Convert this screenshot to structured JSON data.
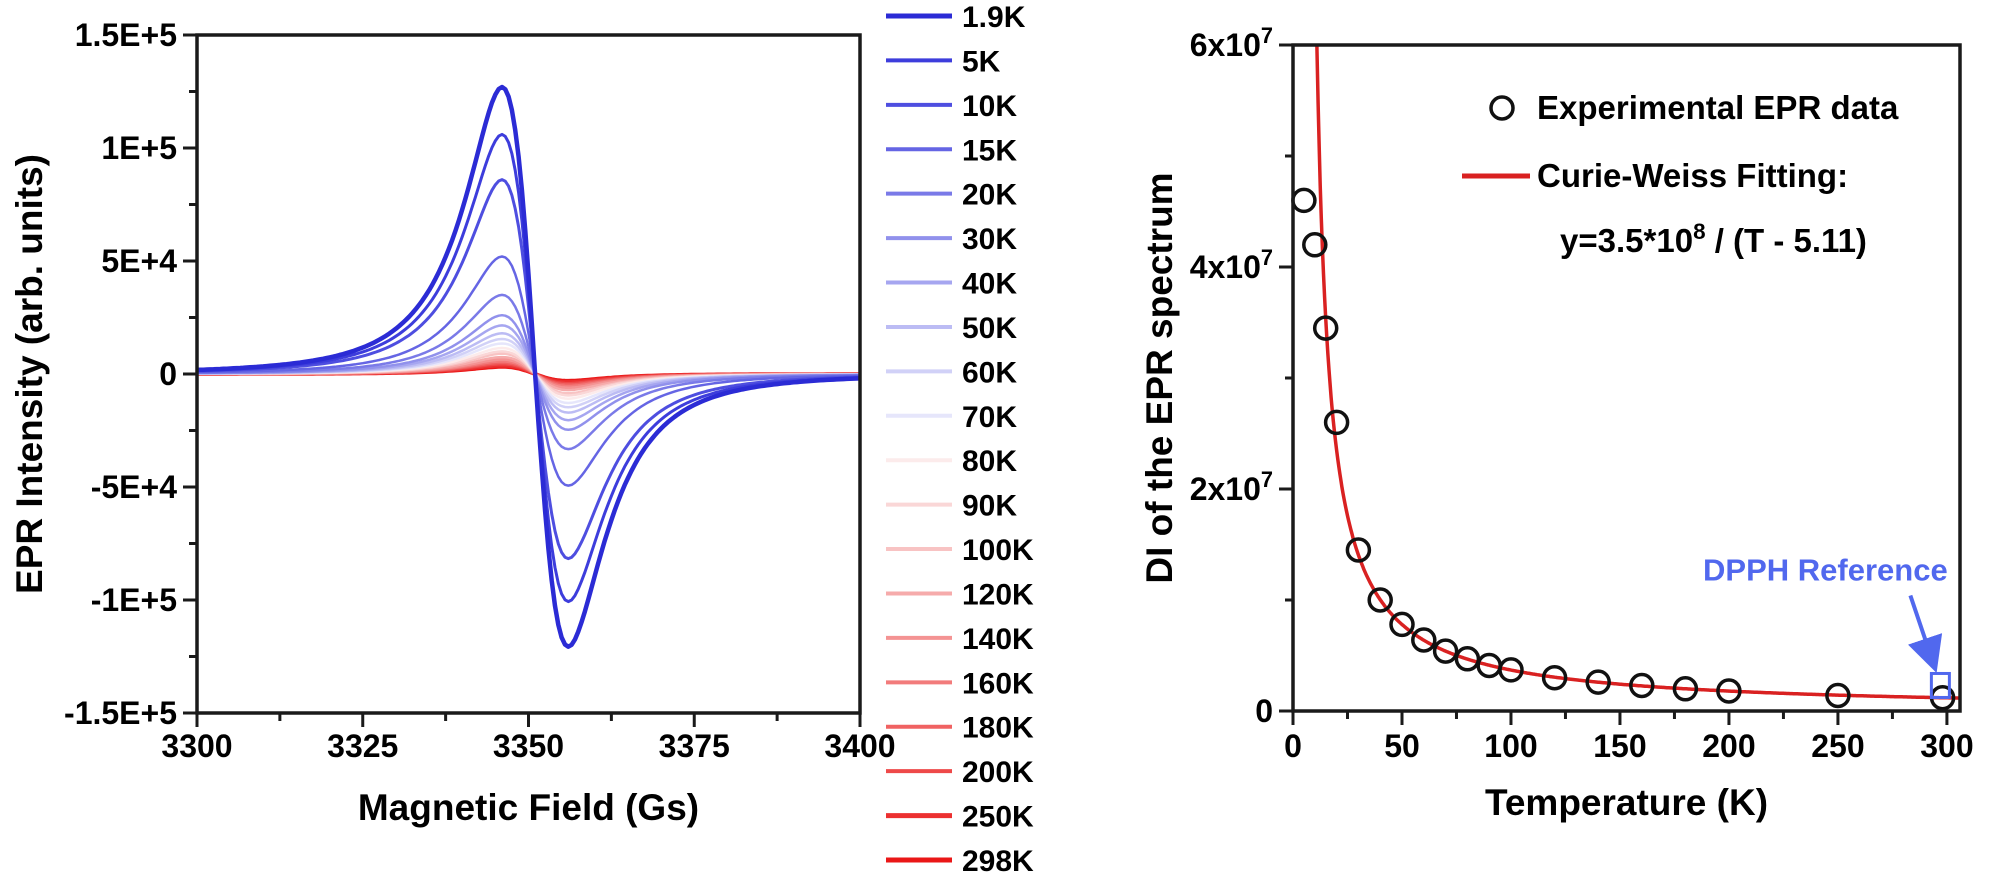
{
  "layout_colors": {
    "background": "#ffffff",
    "frame": "#1a1a1a",
    "text": "#000000"
  },
  "chart_data": [
    {
      "id": "epr_spectra",
      "type": "line",
      "title": "",
      "xlabel": "Magnetic Field (Gs)",
      "ylabel": "EPR Intensity (arb. units)",
      "xlim": [
        3300,
        3400
      ],
      "ylim": [
        -150000,
        150000
      ],
      "grid": false,
      "legend_position": "right-outside",
      "x_ticks": [
        {
          "v": 3300,
          "label": "3300"
        },
        {
          "v": 3325,
          "label": "3325"
        },
        {
          "v": 3350,
          "label": "3350"
        },
        {
          "v": 3375,
          "label": "3375"
        },
        {
          "v": 3400,
          "label": "3400"
        }
      ],
      "y_ticks": [
        {
          "v": 150000,
          "label": "1.5E+5"
        },
        {
          "v": 100000,
          "label": "1E+5"
        },
        {
          "v": 50000,
          "label": "5E+4"
        },
        {
          "v": 0,
          "label": "0"
        },
        {
          "v": -50000,
          "label": "-5E+4"
        },
        {
          "v": -100000,
          "label": "-1E+5"
        },
        {
          "v": -150000,
          "label": "-1.5E+5"
        }
      ],
      "lineshape": {
        "type": "lorentzian-derivative",
        "center_gs": 3351,
        "halfwidth_gs": 8.66,
        "negative_lobe_scale": 0.95
      },
      "series": [
        {
          "name": "1.9K",
          "peak_amplitude": 127000,
          "color": "#2b2bd5",
          "stroke_width": 4.5
        },
        {
          "name": "5K",
          "peak_amplitude": 106000,
          "color": "#3d3ddc",
          "stroke_width": 3
        },
        {
          "name": "10K",
          "peak_amplitude": 86000,
          "color": "#4e4ee0",
          "stroke_width": 3
        },
        {
          "name": "15K",
          "peak_amplitude": 52000,
          "color": "#6565e4",
          "stroke_width": 2.5
        },
        {
          "name": "20K",
          "peak_amplitude": 35000,
          "color": "#7a7ae8",
          "stroke_width": 2.5
        },
        {
          "name": "30K",
          "peak_amplitude": 26000,
          "color": "#9191ec",
          "stroke_width": 2.5
        },
        {
          "name": "40K",
          "peak_amplitude": 21500,
          "color": "#a6a6f0",
          "stroke_width": 2.5
        },
        {
          "name": "50K",
          "peak_amplitude": 18000,
          "color": "#bcbcf4",
          "stroke_width": 2.5
        },
        {
          "name": "60K",
          "peak_amplitude": 15500,
          "color": "#d1d1f7",
          "stroke_width": 2.5
        },
        {
          "name": "70K",
          "peak_amplitude": 13500,
          "color": "#e6e6fb",
          "stroke_width": 2.5
        },
        {
          "name": "80K",
          "peak_amplitude": 11500,
          "color": "#fcebeb",
          "stroke_width": 2.5
        },
        {
          "name": "90K",
          "peak_amplitude": 10000,
          "color": "#fad7d7",
          "stroke_width": 2.5
        },
        {
          "name": "100K",
          "peak_amplitude": 9000,
          "color": "#f8c3c3",
          "stroke_width": 2.5
        },
        {
          "name": "120K",
          "peak_amplitude": 7500,
          "color": "#f6abab",
          "stroke_width": 2.5
        },
        {
          "name": "140K",
          "peak_amplitude": 6500,
          "color": "#f49393",
          "stroke_width": 3
        },
        {
          "name": "160K",
          "peak_amplitude": 5700,
          "color": "#f27b7b",
          "stroke_width": 3
        },
        {
          "name": "180K",
          "peak_amplitude": 5000,
          "color": "#f06262",
          "stroke_width": 3
        },
        {
          "name": "200K",
          "peak_amplitude": 4500,
          "color": "#ee4949",
          "stroke_width": 3.5
        },
        {
          "name": "250K",
          "peak_amplitude": 3700,
          "color": "#ec3030",
          "stroke_width": 3.5
        },
        {
          "name": "298K",
          "peak_amplitude": 3200,
          "color": "#ea1717",
          "stroke_width": 4
        }
      ]
    },
    {
      "id": "curie_weiss",
      "type": "scatter",
      "title": "",
      "xlabel": "Temperature (K)",
      "ylabel": "DI of the EPR spectrum",
      "xlim": [
        0,
        306
      ],
      "ylim": [
        0,
        60000000
      ],
      "grid": false,
      "legend_position": "upper-right-inside",
      "x_ticks": [
        {
          "v": 0,
          "label": "0"
        },
        {
          "v": 50,
          "label": "50"
        },
        {
          "v": 100,
          "label": "100"
        },
        {
          "v": 150,
          "label": "150"
        },
        {
          "v": 200,
          "label": "200"
        },
        {
          "v": 250,
          "label": "250"
        },
        {
          "v": 300,
          "label": "300"
        }
      ],
      "y_ticks": [
        {
          "v": 0,
          "label": "0"
        },
        {
          "v": 20000000,
          "label": "2x10^7"
        },
        {
          "v": 40000000,
          "label": "4x10^7"
        },
        {
          "v": 60000000,
          "label": "6x10^7"
        }
      ],
      "experimental": {
        "label": "Experimental EPR data",
        "marker": "open-circle",
        "marker_color": "#111111",
        "x": [
          5,
          10,
          15,
          20,
          30,
          40,
          50,
          60,
          70,
          80,
          90,
          100,
          120,
          140,
          160,
          180,
          200,
          250,
          298
        ],
        "y": [
          46000000,
          42000000,
          34500000,
          26000000,
          14500000,
          10000000,
          7800000,
          6400000,
          5400000,
          4700000,
          4100000,
          3700000,
          3000000,
          2600000,
          2300000,
          2000000,
          1800000,
          1400000,
          1200000
        ]
      },
      "fit": {
        "label": "Curie-Weiss Fitting:",
        "equation": "y=3.5*10^8 / (T - 5.11)",
        "curie_constant": 350000000,
        "theta_K": 5.11,
        "color": "#d92121"
      },
      "dpph": {
        "label": "DPPH Reference",
        "x": 297,
        "y": 2300000,
        "marker": "open-square",
        "color": "#5168ee"
      }
    }
  ]
}
